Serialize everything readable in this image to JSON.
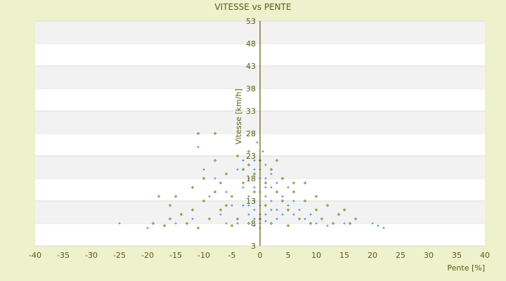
{
  "chart_data": {
    "type": "scatter",
    "title": "VITESSE vs PENTE",
    "xlabel": "Pente [%]",
    "ylabel": "Vitesse [km/h]",
    "xlim": [
      -40,
      40
    ],
    "ylim": [
      3,
      53
    ],
    "xticks": [
      -40,
      -35,
      -30,
      -25,
      -20,
      -15,
      -10,
      -5,
      0,
      5,
      10,
      15,
      20,
      25,
      30,
      35,
      40
    ],
    "yticks": [
      3,
      8,
      13,
      18,
      23,
      28,
      33,
      38,
      43,
      48,
      53
    ],
    "grid": "horizontal alternating bands",
    "legend": "none",
    "colors": {
      "background": "#edf1cc",
      "plot": "#ffffff",
      "band": "#f2f2f2",
      "axis": "#5c5c00"
    },
    "series": [
      {
        "color": "#6b6b00",
        "marker": "diamond",
        "points": [
          [
            -18,
            14
          ],
          [
            -16,
            12
          ],
          [
            -14,
            10
          ],
          [
            -12,
            16
          ],
          [
            -10,
            13
          ],
          [
            -8,
            22
          ],
          [
            -6,
            19
          ],
          [
            -4,
            23
          ],
          [
            -2,
            24
          ],
          [
            0,
            22
          ],
          [
            2,
            20
          ],
          [
            4,
            18
          ],
          [
            6,
            15
          ],
          [
            8,
            13
          ],
          [
            10,
            11
          ],
          [
            12,
            12
          ],
          [
            14,
            10
          ],
          [
            16,
            8
          ],
          [
            17,
            9
          ],
          [
            -19,
            8
          ],
          [
            -17,
            7.5
          ],
          [
            -13,
            8
          ],
          [
            -11,
            7
          ],
          [
            -9,
            9
          ],
          [
            -7,
            11
          ],
          [
            -5,
            14
          ],
          [
            -3,
            17
          ],
          [
            -1,
            19
          ],
          [
            1,
            17
          ],
          [
            3,
            15
          ],
          [
            5,
            11
          ],
          [
            7,
            9
          ],
          [
            9,
            8
          ],
          [
            11,
            9
          ],
          [
            13,
            8
          ],
          [
            -15,
            14
          ],
          [
            -12,
            11
          ],
          [
            -10,
            18
          ],
          [
            -8,
            15
          ],
          [
            -6,
            12
          ],
          [
            -4,
            9
          ],
          [
            -2,
            8
          ],
          [
            0,
            9
          ],
          [
            2,
            8
          ],
          [
            4,
            13
          ],
          [
            6,
            17
          ],
          [
            8,
            17
          ],
          [
            -3,
            20
          ],
          [
            3,
            22
          ],
          [
            -8,
            28
          ],
          [
            -11,
            28
          ],
          [
            -5,
            7.5
          ],
          [
            5,
            7.5
          ],
          [
            15,
            11
          ],
          [
            -16,
            9
          ],
          [
            10,
            14
          ],
          [
            -7,
            17
          ],
          [
            -2,
            21
          ],
          [
            1,
            12
          ],
          [
            -1,
            15
          ]
        ]
      },
      {
        "color": "#3a86d8",
        "marker": "cross",
        "points": [
          [
            -1,
            20
          ],
          [
            0,
            18
          ],
          [
            1,
            16
          ],
          [
            -2,
            14
          ],
          [
            0,
            12
          ],
          [
            2,
            13
          ],
          [
            1,
            10
          ],
          [
            -1,
            9
          ],
          [
            0,
            8
          ],
          [
            3,
            11
          ],
          [
            -3,
            16
          ],
          [
            -1,
            22
          ],
          [
            0.5,
            24
          ],
          [
            -0.5,
            26
          ],
          [
            2,
            19
          ],
          [
            4,
            14
          ],
          [
            5,
            12
          ],
          [
            6,
            10
          ],
          [
            8,
            9
          ],
          [
            10,
            8
          ],
          [
            12,
            7.5
          ],
          [
            -5,
            12
          ],
          [
            -6,
            15
          ],
          [
            -8,
            18
          ],
          [
            -10,
            20
          ],
          [
            -11,
            25
          ],
          [
            -7,
            10
          ],
          [
            -4,
            8
          ],
          [
            -12,
            9
          ],
          [
            -15,
            8
          ],
          [
            -20,
            7
          ],
          [
            -25,
            8
          ],
          [
            20,
            8
          ],
          [
            21,
            7.5
          ],
          [
            22,
            7
          ],
          [
            15,
            8
          ],
          [
            3,
            17
          ],
          [
            1,
            21
          ],
          [
            -2,
            18
          ],
          [
            0,
            15
          ],
          [
            1,
            14
          ],
          [
            -1,
            13
          ],
          [
            2,
            11
          ],
          [
            0,
            10
          ],
          [
            -1,
            11
          ],
          [
            3,
            9
          ],
          [
            4,
            10
          ],
          [
            -3,
            12
          ],
          [
            -2,
            10
          ],
          [
            1,
            8.5
          ],
          [
            0,
            7
          ],
          [
            -1,
            7.5
          ],
          [
            2,
            16
          ],
          [
            -4,
            20
          ],
          [
            -3,
            22
          ],
          [
            6,
            13
          ],
          [
            7,
            11
          ],
          [
            9,
            10
          ],
          [
            -9,
            14
          ],
          [
            -6,
            8
          ],
          [
            5,
            16
          ],
          [
            -1,
            16
          ],
          [
            0,
            20
          ],
          [
            1,
            18
          ],
          [
            -2,
            12
          ]
        ]
      }
    ]
  }
}
